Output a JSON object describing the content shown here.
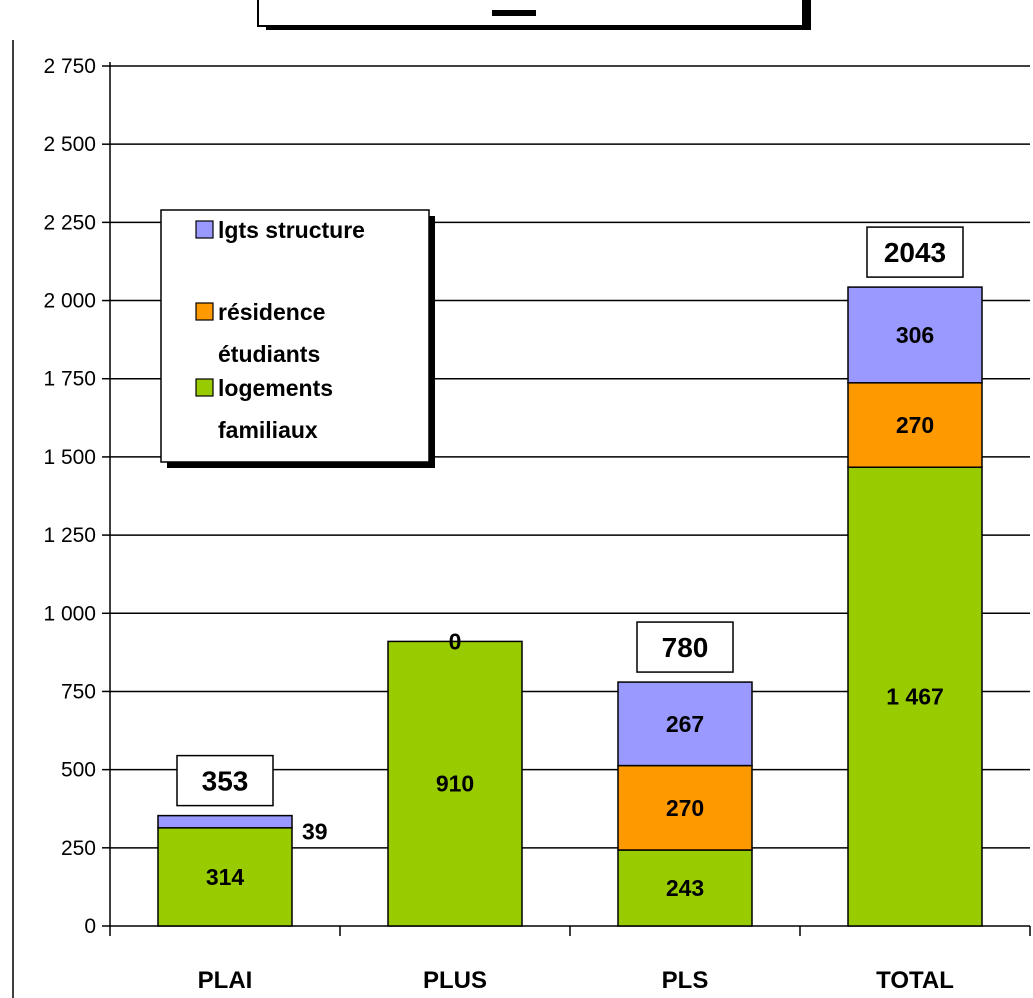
{
  "chart_data": {
    "type": "bar",
    "stacked": true,
    "categories": [
      "PLAI",
      "PLUS",
      "PLS",
      "TOTAL"
    ],
    "series": [
      {
        "name": "logements familiaux",
        "values": [
          314,
          910,
          243,
          1467
        ],
        "color": "#99cc00"
      },
      {
        "name": "résidence étudiants",
        "values": [
          0,
          0,
          270,
          270
        ],
        "color": "#ff9900"
      },
      {
        "name": "lgts structure",
        "values": [
          39,
          0,
          267,
          306
        ],
        "color": "#9999ff"
      }
    ],
    "data_labels": [
      [
        "314",
        "",
        "39"
      ],
      [
        "910",
        "",
        "0"
      ],
      [
        "243",
        "270",
        "267"
      ],
      [
        "1 467",
        "270",
        "306"
      ]
    ],
    "totals": [
      "353",
      "",
      "780",
      "2043"
    ],
    "y_ticks": [
      "0",
      "250",
      "500",
      "750",
      "1 000",
      "1 250",
      "1 500",
      "1 750",
      "2 000",
      "2 250",
      "2 500",
      "2 750"
    ],
    "ylim": [
      0,
      2750
    ],
    "ytick_step": 250,
    "grid": true,
    "legend_position": "top-left",
    "legend": [
      {
        "label_lines": [
          "lgts structure"
        ],
        "color": "#9999ff"
      },
      {
        "label_lines": [
          "résidence",
          "étudiants"
        ],
        "color": "#ff9900"
      },
      {
        "label_lines": [
          "logements",
          "familiaux"
        ],
        "color": "#99cc00"
      }
    ]
  }
}
